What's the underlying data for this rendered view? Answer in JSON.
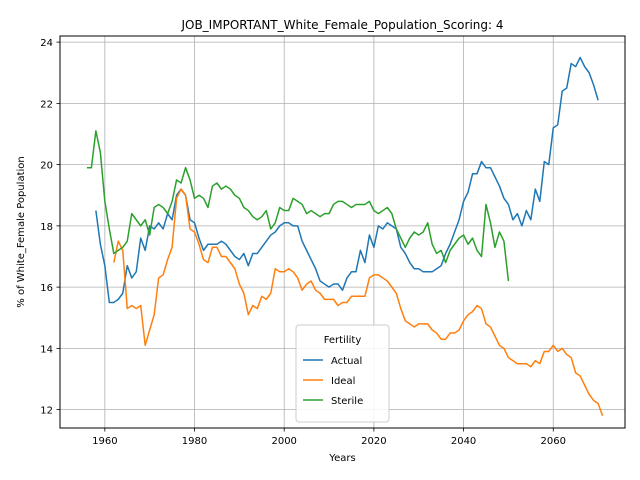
{
  "chart_data": {
    "type": "line",
    "title": "JOB_IMPORTANT_White_Female_Population_Scoring: 4",
    "xlabel": "Years",
    "ylabel": "% of White_Female Population",
    "xlim": [
      1950,
      2076
    ],
    "ylim": [
      11.4,
      24.2
    ],
    "xticks": [
      1960,
      1980,
      2000,
      2020,
      2040,
      2060
    ],
    "yticks": [
      12,
      14,
      16,
      18,
      20,
      22,
      24
    ],
    "grid": true,
    "legend": {
      "title": "Fertility",
      "placement": "bottom-center"
    },
    "series": [
      {
        "name": "Actual",
        "color": "#1f77b4",
        "points": [
          [
            1958,
            18.5
          ],
          [
            1959,
            17.4
          ],
          [
            1960,
            16.7
          ],
          [
            1961,
            15.5
          ],
          [
            1962,
            15.5
          ],
          [
            1963,
            15.6
          ],
          [
            1964,
            15.8
          ],
          [
            1965,
            16.7
          ],
          [
            1966,
            16.3
          ],
          [
            1967,
            16.5
          ],
          [
            1968,
            17.6
          ],
          [
            1969,
            17.2
          ],
          [
            1970,
            18.0
          ],
          [
            1971,
            17.9
          ],
          [
            1972,
            18.1
          ],
          [
            1973,
            17.9
          ],
          [
            1974,
            18.4
          ],
          [
            1975,
            18.2
          ],
          [
            1976,
            19.0
          ],
          [
            1977,
            19.2
          ],
          [
            1978,
            19.0
          ],
          [
            1979,
            18.2
          ],
          [
            1980,
            18.1
          ],
          [
            1981,
            17.6
          ],
          [
            1982,
            17.2
          ],
          [
            1983,
            17.4
          ],
          [
            1984,
            17.4
          ],
          [
            1985,
            17.4
          ],
          [
            1986,
            17.5
          ],
          [
            1987,
            17.4
          ],
          [
            1988,
            17.2
          ],
          [
            1989,
            17.0
          ],
          [
            1990,
            16.9
          ],
          [
            1991,
            17.1
          ],
          [
            1992,
            16.7
          ],
          [
            1993,
            17.1
          ],
          [
            1994,
            17.1
          ],
          [
            1995,
            17.3
          ],
          [
            1996,
            17.5
          ],
          [
            1997,
            17.7
          ],
          [
            1998,
            17.8
          ],
          [
            1999,
            18.0
          ],
          [
            2000,
            18.1
          ],
          [
            2001,
            18.1
          ],
          [
            2002,
            18.0
          ],
          [
            2003,
            18.0
          ],
          [
            2004,
            17.5
          ],
          [
            2005,
            17.2
          ],
          [
            2006,
            16.9
          ],
          [
            2007,
            16.6
          ],
          [
            2008,
            16.2
          ],
          [
            2009,
            16.1
          ],
          [
            2010,
            16.0
          ],
          [
            2011,
            16.1
          ],
          [
            2012,
            16.1
          ],
          [
            2013,
            15.9
          ],
          [
            2014,
            16.3
          ],
          [
            2015,
            16.5
          ],
          [
            2016,
            16.5
          ],
          [
            2017,
            17.2
          ],
          [
            2018,
            16.8
          ],
          [
            2019,
            17.7
          ],
          [
            2020,
            17.3
          ],
          [
            2021,
            18.0
          ],
          [
            2022,
            17.9
          ],
          [
            2023,
            18.1
          ],
          [
            2024,
            18.0
          ],
          [
            2025,
            17.9
          ],
          [
            2026,
            17.3
          ],
          [
            2027,
            17.1
          ],
          [
            2028,
            16.8
          ],
          [
            2029,
            16.6
          ],
          [
            2030,
            16.6
          ],
          [
            2031,
            16.5
          ],
          [
            2032,
            16.5
          ],
          [
            2033,
            16.5
          ],
          [
            2034,
            16.6
          ],
          [
            2035,
            16.7
          ],
          [
            2036,
            17.1
          ],
          [
            2037,
            17.4
          ],
          [
            2038,
            17.8
          ],
          [
            2039,
            18.2
          ],
          [
            2040,
            18.8
          ],
          [
            2041,
            19.1
          ],
          [
            2042,
            19.7
          ],
          [
            2043,
            19.7
          ],
          [
            2044,
            20.1
          ],
          [
            2045,
            19.9
          ],
          [
            2046,
            19.9
          ],
          [
            2047,
            19.6
          ],
          [
            2048,
            19.3
          ],
          [
            2049,
            18.9
          ],
          [
            2050,
            18.7
          ],
          [
            2051,
            18.2
          ],
          [
            2052,
            18.4
          ],
          [
            2053,
            18.0
          ],
          [
            2054,
            18.5
          ],
          [
            2055,
            18.2
          ],
          [
            2056,
            19.2
          ],
          [
            2057,
            18.8
          ],
          [
            2058,
            20.1
          ],
          [
            2059,
            20.0
          ],
          [
            2060,
            21.2
          ],
          [
            2061,
            21.3
          ],
          [
            2062,
            22.4
          ],
          [
            2063,
            22.5
          ],
          [
            2064,
            23.3
          ],
          [
            2065,
            23.2
          ],
          [
            2066,
            23.5
          ],
          [
            2067,
            23.2
          ],
          [
            2068,
            23.0
          ],
          [
            2069,
            22.6
          ],
          [
            2070,
            22.1
          ]
        ]
      },
      {
        "name": "Ideal",
        "color": "#ff7f0e",
        "points": [
          [
            1962,
            16.8
          ],
          [
            1963,
            17.5
          ],
          [
            1964,
            17.2
          ],
          [
            1965,
            15.3
          ],
          [
            1966,
            15.4
          ],
          [
            1967,
            15.3
          ],
          [
            1968,
            15.4
          ],
          [
            1969,
            14.1
          ],
          [
            1970,
            14.6
          ],
          [
            1971,
            15.1
          ],
          [
            1972,
            16.3
          ],
          [
            1973,
            16.4
          ],
          [
            1974,
            16.9
          ],
          [
            1975,
            17.3
          ],
          [
            1976,
            18.9
          ],
          [
            1977,
            19.2
          ],
          [
            1978,
            19.0
          ],
          [
            1979,
            17.9
          ],
          [
            1980,
            17.8
          ],
          [
            1981,
            17.4
          ],
          [
            1982,
            16.9
          ],
          [
            1983,
            16.8
          ],
          [
            1984,
            17.3
          ],
          [
            1985,
            17.3
          ],
          [
            1986,
            17.0
          ],
          [
            1987,
            17.0
          ],
          [
            1988,
            16.8
          ],
          [
            1989,
            16.6
          ],
          [
            1990,
            16.1
          ],
          [
            1991,
            15.8
          ],
          [
            1992,
            15.1
          ],
          [
            1993,
            15.4
          ],
          [
            1994,
            15.3
          ],
          [
            1995,
            15.7
          ],
          [
            1996,
            15.6
          ],
          [
            1997,
            15.8
          ],
          [
            1998,
            16.6
          ],
          [
            1999,
            16.5
          ],
          [
            2000,
            16.5
          ],
          [
            2001,
            16.6
          ],
          [
            2002,
            16.5
          ],
          [
            2003,
            16.3
          ],
          [
            2004,
            15.9
          ],
          [
            2005,
            16.1
          ],
          [
            2006,
            16.2
          ],
          [
            2007,
            15.9
          ],
          [
            2008,
            15.8
          ],
          [
            2009,
            15.6
          ],
          [
            2010,
            15.6
          ],
          [
            2011,
            15.6
          ],
          [
            2012,
            15.4
          ],
          [
            2013,
            15.5
          ],
          [
            2014,
            15.5
          ],
          [
            2015,
            15.7
          ],
          [
            2016,
            15.7
          ],
          [
            2017,
            15.7
          ],
          [
            2018,
            15.7
          ],
          [
            2019,
            16.3
          ],
          [
            2020,
            16.4
          ],
          [
            2021,
            16.4
          ],
          [
            2022,
            16.3
          ],
          [
            2023,
            16.2
          ],
          [
            2024,
            16.0
          ],
          [
            2025,
            15.8
          ],
          [
            2026,
            15.3
          ],
          [
            2027,
            14.9
          ],
          [
            2028,
            14.8
          ],
          [
            2029,
            14.7
          ],
          [
            2030,
            14.8
          ],
          [
            2031,
            14.8
          ],
          [
            2032,
            14.8
          ],
          [
            2033,
            14.6
          ],
          [
            2034,
            14.5
          ],
          [
            2035,
            14.3
          ],
          [
            2036,
            14.3
          ],
          [
            2037,
            14.5
          ],
          [
            2038,
            14.5
          ],
          [
            2039,
            14.6
          ],
          [
            2040,
            14.9
          ],
          [
            2041,
            15.1
          ],
          [
            2042,
            15.2
          ],
          [
            2043,
            15.4
          ],
          [
            2044,
            15.3
          ],
          [
            2045,
            14.8
          ],
          [
            2046,
            14.7
          ],
          [
            2047,
            14.4
          ],
          [
            2048,
            14.1
          ],
          [
            2049,
            14.0
          ],
          [
            2050,
            13.7
          ],
          [
            2051,
            13.6
          ],
          [
            2052,
            13.5
          ],
          [
            2053,
            13.5
          ],
          [
            2054,
            13.5
          ],
          [
            2055,
            13.4
          ],
          [
            2056,
            13.6
          ],
          [
            2057,
            13.5
          ],
          [
            2058,
            13.9
          ],
          [
            2059,
            13.9
          ],
          [
            2060,
            14.1
          ],
          [
            2061,
            13.9
          ],
          [
            2062,
            14.0
          ],
          [
            2063,
            13.8
          ],
          [
            2064,
            13.7
          ],
          [
            2065,
            13.2
          ],
          [
            2066,
            13.1
          ],
          [
            2067,
            12.8
          ],
          [
            2068,
            12.5
          ],
          [
            2069,
            12.3
          ],
          [
            2070,
            12.2
          ],
          [
            2071,
            11.8
          ]
        ]
      },
      {
        "name": "Sterile",
        "color": "#2ca02c",
        "points": [
          [
            1956,
            19.9
          ],
          [
            1957,
            19.9
          ],
          [
            1958,
            21.1
          ],
          [
            1959,
            20.4
          ],
          [
            1960,
            18.8
          ],
          [
            1961,
            17.9
          ],
          [
            1962,
            17.1
          ],
          [
            1963,
            17.2
          ],
          [
            1964,
            17.3
          ],
          [
            1965,
            17.5
          ],
          [
            1966,
            18.4
          ],
          [
            1967,
            18.2
          ],
          [
            1968,
            18.0
          ],
          [
            1969,
            18.2
          ],
          [
            1970,
            17.7
          ],
          [
            1971,
            18.6
          ],
          [
            1972,
            18.7
          ],
          [
            1973,
            18.6
          ],
          [
            1974,
            18.4
          ],
          [
            1975,
            18.8
          ],
          [
            1976,
            19.5
          ],
          [
            1977,
            19.4
          ],
          [
            1978,
            19.9
          ],
          [
            1979,
            19.5
          ],
          [
            1980,
            18.9
          ],
          [
            1981,
            19.0
          ],
          [
            1982,
            18.9
          ],
          [
            1983,
            18.6
          ],
          [
            1984,
            19.3
          ],
          [
            1985,
            19.4
          ],
          [
            1986,
            19.2
          ],
          [
            1987,
            19.3
          ],
          [
            1988,
            19.2
          ],
          [
            1989,
            19.0
          ],
          [
            1990,
            18.9
          ],
          [
            1991,
            18.6
          ],
          [
            1992,
            18.5
          ],
          [
            1993,
            18.3
          ],
          [
            1994,
            18.2
          ],
          [
            1995,
            18.3
          ],
          [
            1996,
            18.5
          ],
          [
            1997,
            17.9
          ],
          [
            1998,
            18.1
          ],
          [
            1999,
            18.6
          ],
          [
            2000,
            18.5
          ],
          [
            2001,
            18.5
          ],
          [
            2002,
            18.9
          ],
          [
            2003,
            18.8
          ],
          [
            2004,
            18.7
          ],
          [
            2005,
            18.4
          ],
          [
            2006,
            18.5
          ],
          [
            2007,
            18.4
          ],
          [
            2008,
            18.3
          ],
          [
            2009,
            18.4
          ],
          [
            2010,
            18.4
          ],
          [
            2011,
            18.7
          ],
          [
            2012,
            18.8
          ],
          [
            2013,
            18.8
          ],
          [
            2014,
            18.7
          ],
          [
            2015,
            18.6
          ],
          [
            2016,
            18.7
          ],
          [
            2017,
            18.7
          ],
          [
            2018,
            18.7
          ],
          [
            2019,
            18.8
          ],
          [
            2020,
            18.5
          ],
          [
            2021,
            18.4
          ],
          [
            2022,
            18.5
          ],
          [
            2023,
            18.6
          ],
          [
            2024,
            18.4
          ],
          [
            2025,
            17.9
          ],
          [
            2026,
            17.6
          ],
          [
            2027,
            17.3
          ],
          [
            2028,
            17.6
          ],
          [
            2029,
            17.8
          ],
          [
            2030,
            17.7
          ],
          [
            2031,
            17.8
          ],
          [
            2032,
            18.1
          ],
          [
            2033,
            17.4
          ],
          [
            2034,
            17.1
          ],
          [
            2035,
            17.2
          ],
          [
            2036,
            16.8
          ],
          [
            2037,
            17.2
          ],
          [
            2038,
            17.4
          ],
          [
            2039,
            17.6
          ],
          [
            2040,
            17.7
          ],
          [
            2041,
            17.4
          ],
          [
            2042,
            17.6
          ],
          [
            2043,
            17.2
          ],
          [
            2044,
            17.0
          ],
          [
            2045,
            18.7
          ],
          [
            2046,
            18.1
          ],
          [
            2047,
            17.3
          ],
          [
            2048,
            17.8
          ],
          [
            2049,
            17.5
          ],
          [
            2050,
            16.2
          ]
        ]
      }
    ]
  }
}
